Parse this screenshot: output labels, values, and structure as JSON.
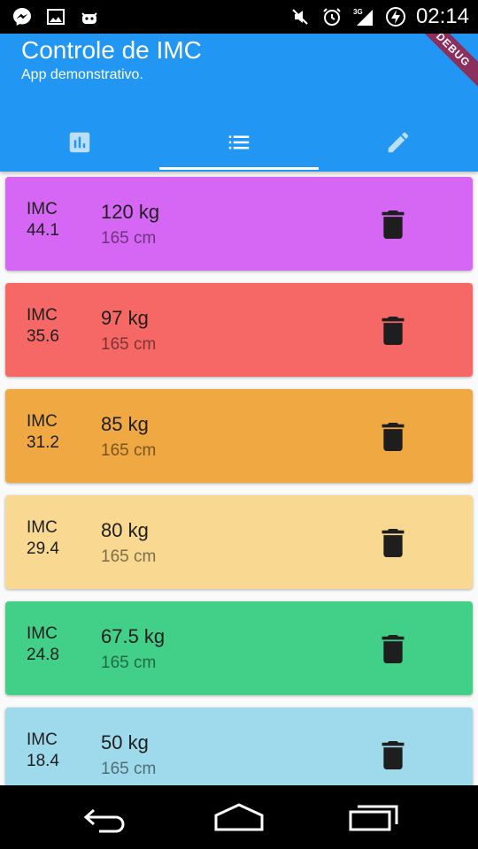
{
  "status_bar": {
    "icons_left": [
      "messenger-icon",
      "image-icon",
      "android-debug-icon"
    ],
    "icons_right": [
      "mute-icon",
      "alarm-icon",
      "signal-3g-icon",
      "battery-charging-icon"
    ],
    "network": "3G",
    "time": "02:14"
  },
  "app_bar": {
    "title": "Controle de IMC",
    "subtitle": "App demonstrativo.",
    "debug_banner": "DEBUG",
    "color": "#2196f3",
    "tabs": [
      {
        "icon": "bar-chart-icon",
        "active": false
      },
      {
        "icon": "list-icon",
        "active": true
      },
      {
        "icon": "edit-icon",
        "active": false
      }
    ]
  },
  "records": [
    {
      "imc_label": "IMC",
      "imc": "44.1",
      "weight": "120 kg",
      "height": "165 cm",
      "color": "#d667f5"
    },
    {
      "imc_label": "IMC",
      "imc": "35.6",
      "weight": "97 kg",
      "height": "165 cm",
      "color": "#f66866"
    },
    {
      "imc_label": "IMC",
      "imc": "31.2",
      "weight": "85 kg",
      "height": "165 cm",
      "color": "#f0a843"
    },
    {
      "imc_label": "IMC",
      "imc": "29.4",
      "weight": "80 kg",
      "height": "165 cm",
      "color": "#f9d891"
    },
    {
      "imc_label": "IMC",
      "imc": "24.8",
      "weight": "67.5 kg",
      "height": "165 cm",
      "color": "#42d088"
    },
    {
      "imc_label": "IMC",
      "imc": "18.4",
      "weight": "50 kg",
      "height": "165 cm",
      "color": "#9fd9ec"
    }
  ],
  "nav_bar": {
    "buttons": [
      "back-icon",
      "home-icon",
      "recents-icon"
    ]
  }
}
